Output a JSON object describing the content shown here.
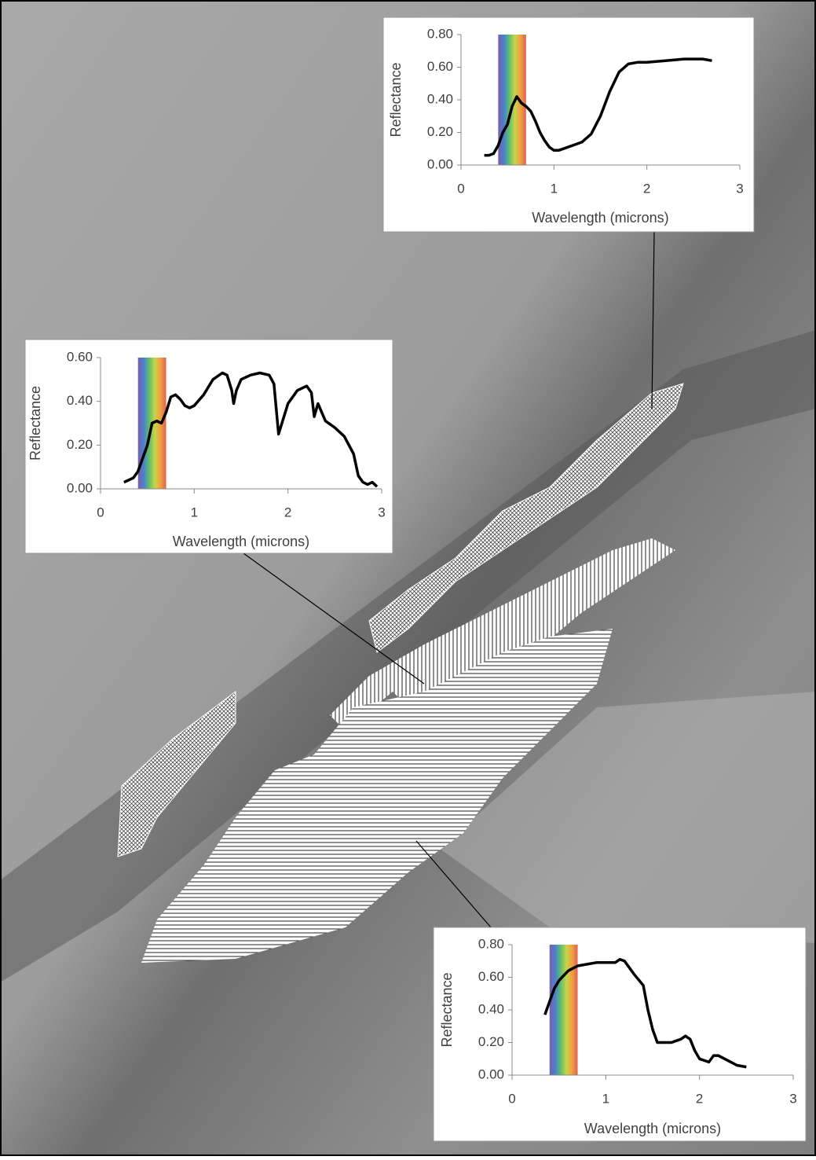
{
  "chart_data": [
    {
      "type": "line",
      "xlabel": "Wavelength (microns)",
      "ylabel": "Reflectance",
      "xlim": [
        0,
        3
      ],
      "ylim": [
        0,
        0.8
      ],
      "xticks": [
        0,
        1,
        2,
        3
      ],
      "yticks": [
        {
          "value": 0,
          "label": "0.00"
        },
        {
          "value": 0.2,
          "label": "0.20"
        },
        {
          "value": 0.4,
          "label": "0.40"
        },
        {
          "value": 0.6,
          "label": "0.60"
        },
        {
          "value": 0.8,
          "label": "0.80"
        }
      ],
      "x": [
        0.25,
        0.3,
        0.35,
        0.4,
        0.45,
        0.5,
        0.55,
        0.6,
        0.65,
        0.7,
        0.75,
        0.8,
        0.85,
        0.9,
        0.95,
        1.0,
        1.05,
        1.1,
        1.2,
        1.3,
        1.4,
        1.5,
        1.6,
        1.7,
        1.8,
        1.9,
        2.0,
        2.2,
        2.4,
        2.6,
        2.7
      ],
      "series": [
        {
          "color": "#000000",
          "values": [
            0.06,
            0.06,
            0.07,
            0.12,
            0.2,
            0.25,
            0.36,
            0.42,
            0.38,
            0.36,
            0.33,
            0.27,
            0.2,
            0.15,
            0.11,
            0.09,
            0.09,
            0.1,
            0.12,
            0.14,
            0.19,
            0.3,
            0.45,
            0.57,
            0.62,
            0.63,
            0.63,
            0.64,
            0.65,
            0.65,
            0.64
          ]
        }
      ]
    },
    {
      "type": "line",
      "xlabel": "Wavelength (microns)",
      "ylabel": "Reflectance",
      "xlim": [
        0,
        3
      ],
      "ylim": [
        0,
        0.6
      ],
      "xticks": [
        0,
        1,
        2,
        3
      ],
      "yticks": [
        {
          "value": 0,
          "label": "0.00"
        },
        {
          "value": 0.2,
          "label": "0.20"
        },
        {
          "value": 0.4,
          "label": "0.40"
        },
        {
          "value": 0.6,
          "label": "0.60"
        }
      ],
      "x": [
        0.25,
        0.3,
        0.35,
        0.4,
        0.45,
        0.5,
        0.55,
        0.6,
        0.65,
        0.7,
        0.75,
        0.8,
        0.85,
        0.9,
        0.95,
        1.0,
        1.1,
        1.2,
        1.3,
        1.35,
        1.4,
        1.42,
        1.45,
        1.5,
        1.6,
        1.7,
        1.8,
        1.85,
        1.9,
        1.95,
        2.0,
        2.1,
        2.2,
        2.25,
        2.28,
        2.32,
        2.4,
        2.5,
        2.6,
        2.7,
        2.75,
        2.8,
        2.85,
        2.9,
        2.95
      ],
      "series": [
        {
          "color": "#000000",
          "values": [
            0.03,
            0.04,
            0.05,
            0.08,
            0.14,
            0.2,
            0.3,
            0.31,
            0.3,
            0.35,
            0.42,
            0.43,
            0.41,
            0.38,
            0.37,
            0.38,
            0.43,
            0.5,
            0.53,
            0.52,
            0.45,
            0.39,
            0.45,
            0.5,
            0.52,
            0.53,
            0.52,
            0.48,
            0.25,
            0.32,
            0.39,
            0.45,
            0.47,
            0.44,
            0.33,
            0.39,
            0.31,
            0.28,
            0.24,
            0.16,
            0.06,
            0.03,
            0.02,
            0.03,
            0.01
          ]
        }
      ]
    },
    {
      "type": "line",
      "xlabel": "Wavelength (microns)",
      "ylabel": "Reflectance",
      "xlim": [
        0,
        3
      ],
      "ylim": [
        0,
        0.8
      ],
      "xticks": [
        0,
        1,
        2,
        3
      ],
      "yticks": [
        {
          "value": 0,
          "label": "0.00"
        },
        {
          "value": 0.2,
          "label": "0.20"
        },
        {
          "value": 0.4,
          "label": "0.40"
        },
        {
          "value": 0.6,
          "label": "0.60"
        },
        {
          "value": 0.8,
          "label": "0.80"
        }
      ],
      "x": [
        0.35,
        0.4,
        0.45,
        0.5,
        0.55,
        0.6,
        0.7,
        0.8,
        0.9,
        1.0,
        1.1,
        1.15,
        1.2,
        1.3,
        1.4,
        1.45,
        1.5,
        1.55,
        1.6,
        1.7,
        1.8,
        1.85,
        1.9,
        1.95,
        2.0,
        2.1,
        2.15,
        2.2,
        2.3,
        2.4,
        2.5
      ],
      "series": [
        {
          "color": "#000000",
          "values": [
            0.37,
            0.45,
            0.53,
            0.58,
            0.61,
            0.64,
            0.67,
            0.68,
            0.69,
            0.69,
            0.69,
            0.71,
            0.7,
            0.62,
            0.55,
            0.4,
            0.28,
            0.2,
            0.2,
            0.2,
            0.22,
            0.24,
            0.22,
            0.15,
            0.1,
            0.08,
            0.12,
            0.12,
            0.09,
            0.06,
            0.05
          ]
        }
      ]
    }
  ]
}
